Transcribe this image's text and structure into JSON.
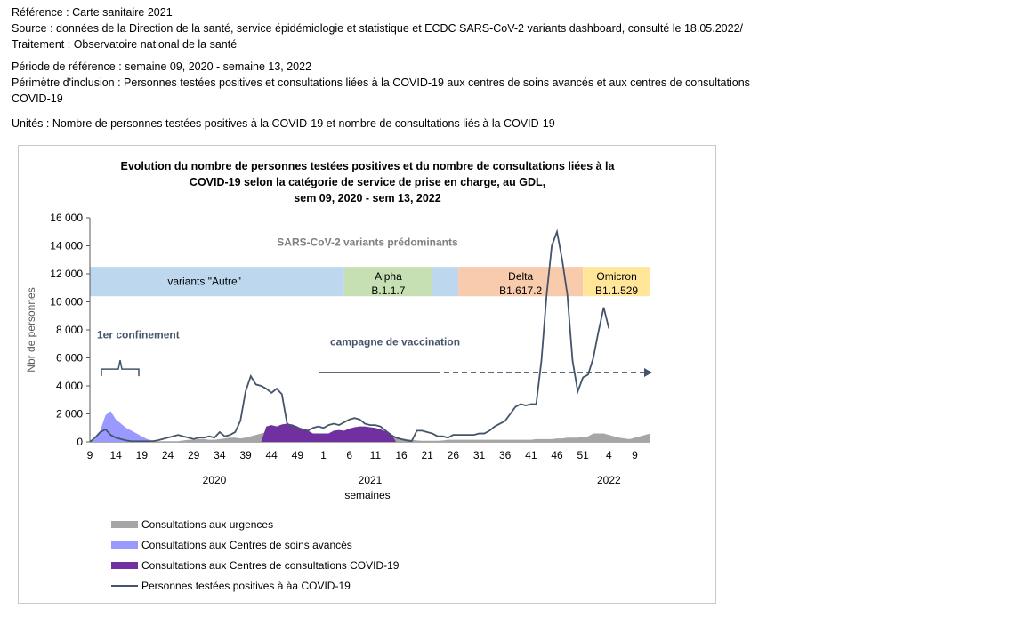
{
  "header": {
    "reference": "Référence : Carte sanitaire 2021",
    "source": "Source : données de la Direction de la santé, service épidémiologie et statistique et ECDC SARS-CoV-2 variants dashboard, consulté le 18.05.2022/",
    "treatment": "Traitement : Observatoire national de la santé",
    "period": "Période de référence : semaine 09, 2020 - semaine 13, 2022",
    "scope": "Périmètre d'inclusion : Personnes testées positives et consultations liées à la COVID-19 aux centres de soins avancés et aux centres de consultations COVID-19",
    "units": "Unités : Nombre de personnes testées positives à la COVID-19 et nombre de consultations liés à la COVID-19"
  },
  "chart_data": {
    "type": "area",
    "title_lines": [
      "Evolution du nombre de personnes testées positives et du nombre de consultations liées à la",
      "COVID-19 selon la catégorie de service de prise en charge, au GDL,",
      "sem 09, 2020 - sem 13, 2022"
    ],
    "ylabel": "Nbr de personnes",
    "xlabel": "semaines",
    "ylim": [
      0,
      16000
    ],
    "yticks": [
      0,
      2000,
      4000,
      6000,
      8000,
      10000,
      12000,
      14000,
      16000
    ],
    "ytick_labels": [
      "0",
      "2 000",
      "4 000",
      "6 000",
      "8 000",
      "10 000",
      "12 000",
      "14 000",
      "16 000"
    ],
    "week_count": 109,
    "xtick_labels": [
      "9",
      "14",
      "19",
      "24",
      "29",
      "34",
      "39",
      "44",
      "49",
      "1",
      "6",
      "11",
      "16",
      "21",
      "26",
      "31",
      "36",
      "41",
      "46",
      "51",
      "4",
      "9"
    ],
    "xtick_index_step": 5,
    "years": [
      {
        "label": "2020",
        "at_week_index": 24
      },
      {
        "label": "2021",
        "at_week_index": 54
      },
      {
        "label": "2022",
        "at_week_index": 100
      }
    ],
    "series": [
      {
        "name": "Consultations aux urgences",
        "color": "#a6a6a6",
        "kind": "area",
        "values": [
          0,
          50,
          200,
          400,
          300,
          200,
          100,
          50,
          50,
          50,
          50,
          50,
          50,
          50,
          50,
          50,
          50,
          50,
          100,
          150,
          150,
          200,
          200,
          150,
          150,
          200,
          250,
          300,
          300,
          250,
          300,
          400,
          500,
          600,
          700,
          700,
          650,
          600,
          600,
          600,
          600,
          650,
          600,
          550,
          500,
          450,
          450,
          450,
          500,
          500,
          500,
          550,
          550,
          500,
          500,
          450,
          450,
          400,
          350,
          300,
          250,
          200,
          150,
          100,
          80,
          80,
          80,
          80,
          100,
          150,
          150,
          150,
          150,
          150,
          150,
          150,
          150,
          150,
          150,
          150,
          150,
          150,
          150,
          150,
          150,
          150,
          200,
          200,
          200,
          200,
          250,
          250,
          300,
          300,
          300,
          350,
          400,
          600,
          600,
          600,
          500,
          400,
          300,
          250,
          200,
          300,
          400,
          500,
          600
        ]
      },
      {
        "name": "Consultations aux Centres de soins avancés",
        "color": "#9999ff",
        "kind": "area",
        "values": [
          0,
          200,
          800,
          1900,
          2200,
          1600,
          1300,
          1000,
          800,
          600,
          400,
          200,
          100,
          0
        ]
      },
      {
        "name": "Consultations aux Centres de consultations COVID-19",
        "color": "#7030a0",
        "kind": "area",
        "values": [
          0,
          0,
          0,
          0,
          0,
          0,
          0,
          0,
          0,
          0,
          0,
          0,
          0,
          0,
          0,
          0,
          0,
          0,
          0,
          0,
          0,
          0,
          0,
          0,
          0,
          0,
          0,
          0,
          0,
          0,
          0,
          0,
          0,
          0,
          1100,
          1200,
          1100,
          1250,
          1300,
          1250,
          1100,
          900,
          800,
          600,
          600,
          600,
          600,
          800,
          850,
          800,
          950,
          1050,
          1100,
          1100,
          1050,
          1000,
          900,
          750,
          600,
          0
        ]
      },
      {
        "name": "Personnes testées positives à àa COVID-19",
        "color": "#44546a",
        "kind": "line",
        "values": [
          0,
          300,
          700,
          900,
          500,
          300,
          200,
          100,
          50,
          50,
          50,
          50,
          50,
          100,
          200,
          300,
          400,
          500,
          400,
          300,
          200,
          300,
          300,
          400,
          300,
          700,
          400,
          500,
          700,
          1500,
          3600,
          4700,
          4100,
          4000,
          3800,
          3500,
          3800,
          3400,
          1300,
          1100,
          1000,
          900,
          800,
          1000,
          1100,
          1000,
          1200,
          1300,
          1200,
          1400,
          1600,
          1700,
          1600,
          1300,
          1200,
          1200,
          1100,
          800,
          500,
          300,
          200,
          100,
          50,
          800,
          800,
          700,
          600,
          400,
          400,
          300,
          500,
          500,
          500,
          500,
          500,
          600,
          600,
          800,
          1100,
          1300,
          1500,
          2000,
          2500,
          2700,
          2600,
          2700,
          2700,
          5800,
          10500,
          14000,
          15000,
          13000,
          10500,
          5800,
          3600,
          4600,
          4800,
          6000,
          7900,
          9600,
          8100
        ]
      }
    ],
    "variant_band": {
      "label": "SARS-CoV-2 variants prédominants",
      "segments": [
        {
          "lines": [
            "variants \"Autre\""
          ],
          "color": "#bdd7ee",
          "start": 0,
          "end": 49
        },
        {
          "lines": [
            "Alpha",
            "B.1.1.7"
          ],
          "color": "#c6e0b4",
          "start": 49,
          "end": 66
        },
        {
          "lines": [],
          "color": "#bdd7ee",
          "start": 66,
          "end": 71
        },
        {
          "lines": [
            "Delta",
            "B1.617.2"
          ],
          "color": "#f8cbad",
          "start": 71,
          "end": 95
        },
        {
          "lines": [
            "Omicron",
            "B1.1.529"
          ],
          "color": "#ffe699",
          "start": 95,
          "end": 109
        }
      ]
    },
    "annotations": {
      "lockdown": "1er confinement",
      "vaccination": "campagne de vaccination"
    },
    "colors": {
      "axis": "#595959",
      "line": "#44546a",
      "band_text": "#7f7f7f"
    }
  }
}
